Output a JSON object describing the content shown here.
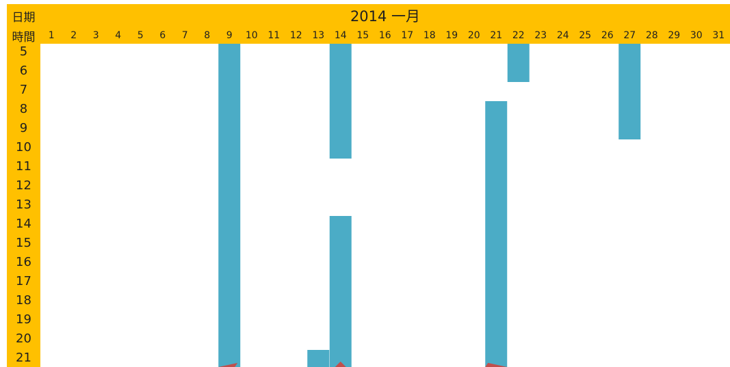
{
  "header": {
    "date_label": "日期",
    "time_label": "時間",
    "title": "2014 一月"
  },
  "colors": {
    "header_bg": "#ffc000",
    "bar": "#4bacc6",
    "marker": "#c0504d"
  },
  "chart_data": {
    "type": "bar",
    "title": "2014 一月",
    "xlabel": "日期",
    "ylabel": "時間",
    "orientation": "vertical-ranges",
    "days": [
      "1",
      "2",
      "3",
      "4",
      "5",
      "6",
      "7",
      "8",
      "9",
      "10",
      "11",
      "12",
      "13",
      "14",
      "15",
      "16",
      "17",
      "18",
      "19",
      "20",
      "21",
      "22",
      "23",
      "24",
      "25",
      "26",
      "27",
      "28",
      "29",
      "30",
      "31"
    ],
    "hours": [
      "5",
      "6",
      "7",
      "8",
      "9",
      "10",
      "11",
      "12",
      "13",
      "14",
      "15",
      "16",
      "17",
      "18",
      "19",
      "20",
      "21"
    ],
    "ylim": [
      4.5,
      21.5
    ],
    "bars": [
      {
        "day": 9,
        "start": 4.5,
        "end": 21.5
      },
      {
        "day": 14,
        "start": 4.5,
        "end": 10.5
      },
      {
        "day": 14,
        "start": 13.5,
        "end": 21.5
      },
      {
        "day": 13,
        "start": 20.5,
        "end": 21.5
      },
      {
        "day": 22,
        "start": 4.5,
        "end": 6.5
      },
      {
        "day": 21,
        "start": 7.5,
        "end": 21.5
      },
      {
        "day": 27,
        "start": 4.5,
        "end": 9.5
      }
    ],
    "markers": [
      {
        "day": 9,
        "dir": "left"
      },
      {
        "day": 14,
        "dir": "up"
      },
      {
        "day": 21,
        "dir": "right"
      }
    ]
  }
}
